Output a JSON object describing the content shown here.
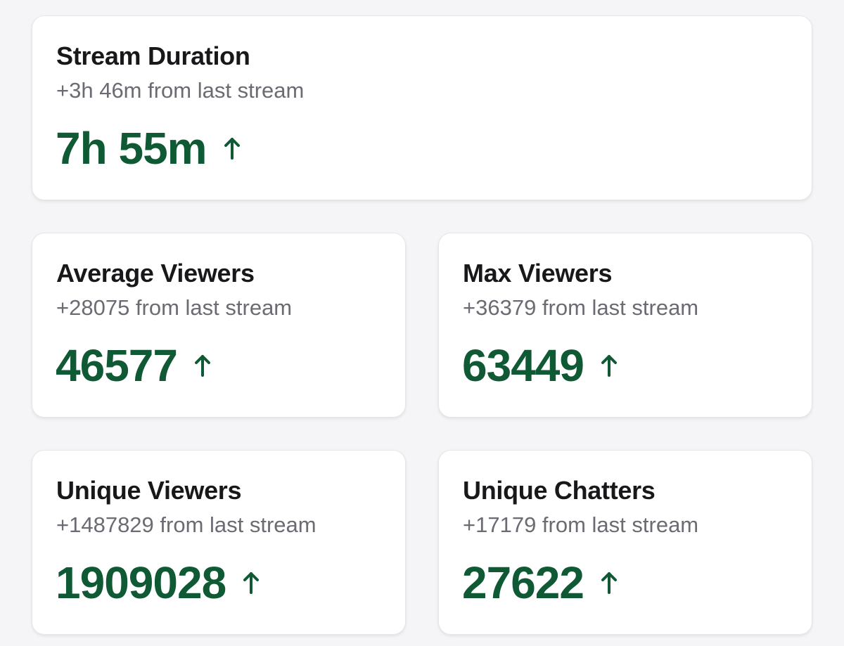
{
  "colors": {
    "background": "#f5f5f7",
    "card": "#ffffff",
    "title": "#18181b",
    "subtitle": "#6b6b73",
    "value_green": "#0f5a35"
  },
  "cards": [
    {
      "title": "Stream Duration",
      "subtitle": "+3h 46m from last stream",
      "value": "7h 55m",
      "trend_icon": "arrow-up-icon"
    },
    {
      "title": "Average Viewers",
      "subtitle": "+28075 from last stream",
      "value": "46577",
      "trend_icon": "arrow-up-icon"
    },
    {
      "title": "Max Viewers",
      "subtitle": "+36379 from last stream",
      "value": "63449",
      "trend_icon": "arrow-up-icon"
    },
    {
      "title": "Unique Viewers",
      "subtitle": "+1487829 from last stream",
      "value": "1909028",
      "trend_icon": "arrow-up-icon"
    },
    {
      "title": "Unique Chatters",
      "subtitle": "+17179 from last stream",
      "value": "27622",
      "trend_icon": "arrow-up-icon"
    }
  ]
}
